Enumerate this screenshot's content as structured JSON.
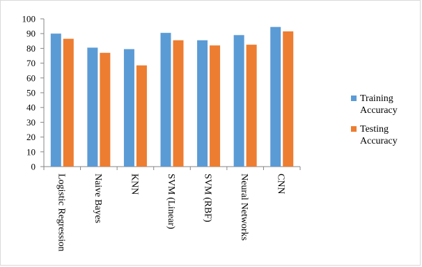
{
  "chart_data": {
    "type": "bar",
    "categories": [
      "Logistic Regression",
      "Naive Bayes",
      "KNN",
      "SVM (Linear)",
      "SVM (RBF)",
      "Neural Networks",
      "CNN"
    ],
    "series": [
      {
        "name": "Training Accuracy",
        "legend_lines": [
          "Training",
          "Accuracy"
        ],
        "color": "#5b9bd5",
        "values": [
          90,
          80.5,
          79.5,
          90.5,
          85.5,
          89,
          94.5
        ]
      },
      {
        "name": "Testing Accuracy",
        "legend_lines": [
          "Testing",
          "Accuracy"
        ],
        "color": "#ed7d31",
        "values": [
          86.5,
          77,
          68.5,
          85.5,
          82,
          82.5,
          91.5
        ]
      }
    ],
    "yticks": [
      0,
      10,
      20,
      30,
      40,
      50,
      60,
      70,
      80,
      90,
      100
    ],
    "ylim": [
      0,
      100
    ],
    "grid": false,
    "legend_position": "right"
  }
}
